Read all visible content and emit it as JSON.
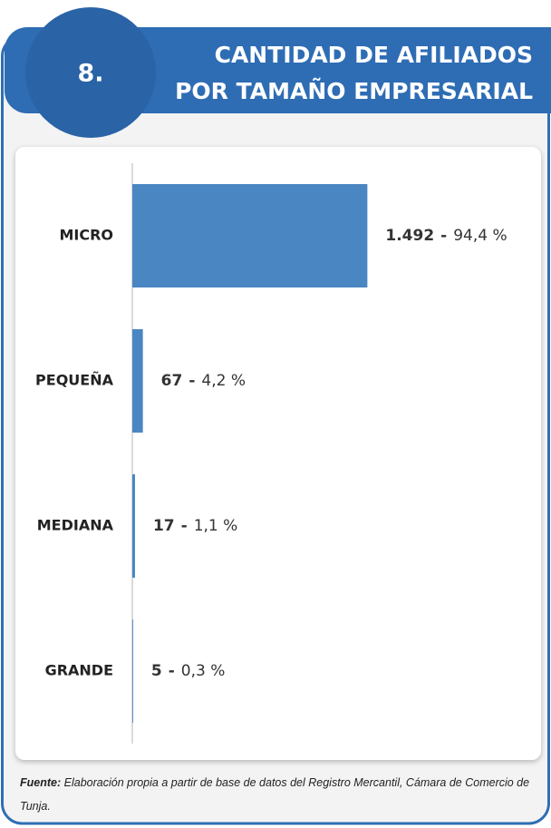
{
  "header": {
    "number": "8.",
    "title": [
      "CANTIDAD DE AFILIADOS",
      "POR TAMAÑO EMPRESARIAL"
    ]
  },
  "chart_data": {
    "type": "bar",
    "orientation": "horizontal",
    "categories": [
      "MICRO",
      "PEQUEÑA",
      "MEDIANA",
      "GRANDE"
    ],
    "values": [
      1492,
      67,
      17,
      5
    ],
    "value_labels": [
      "1.492",
      "67",
      "17",
      "5"
    ],
    "separator": "-",
    "percentages": [
      94.4,
      4.2,
      1.1,
      0.3
    ],
    "percentage_labels": [
      "94,4 %",
      "4,2 %",
      "1,1 %",
      "0,3 %"
    ],
    "color": "#4a86c2",
    "xlim": [
      0,
      2600
    ]
  },
  "source": {
    "label": "Fuente:",
    "text": "Elaboración propia a partir de base de datos del Registro Mercantil, Cámara de Comercio de Tunja."
  }
}
